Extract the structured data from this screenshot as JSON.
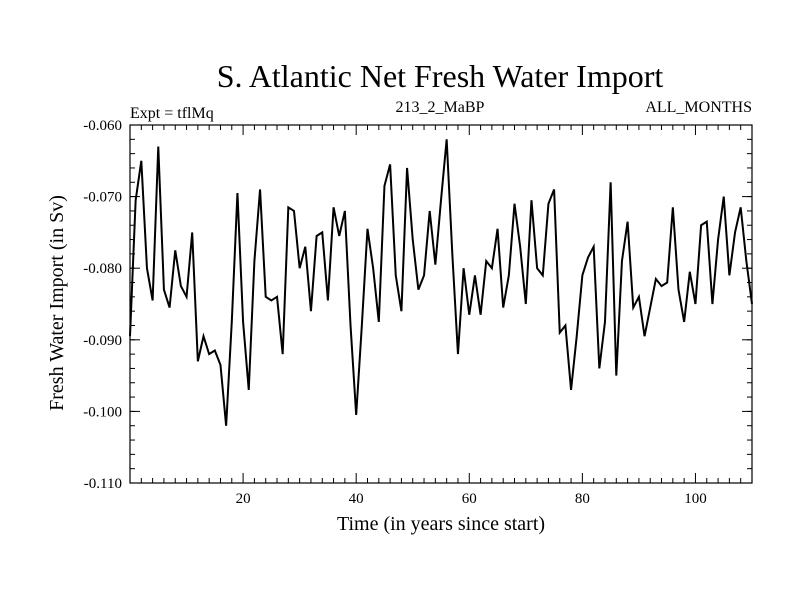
{
  "chart_data": {
    "type": "line",
    "title": "S. Atlantic Net Fresh Water Import",
    "subtitle_left": "Expt = tflMq",
    "subtitle_center": "213_2_MaBP",
    "subtitle_right": "ALL_MONTHS",
    "xlabel": "Time (in years since start)",
    "ylabel": "Fresh Water Import (in Sv)",
    "xlim": [
      0,
      110
    ],
    "ylim": [
      -0.11,
      -0.06
    ],
    "x_ticks": [
      20,
      40,
      60,
      80,
      100
    ],
    "x_tick_labels": [
      "20",
      "40",
      "60",
      "80",
      "100"
    ],
    "y_ticks": [
      -0.06,
      -0.07,
      -0.08,
      -0.09,
      -0.1,
      -0.11
    ],
    "y_tick_labels": [
      "-0.060",
      "-0.070",
      "-0.080",
      "-0.090",
      "-0.100",
      "-0.110"
    ],
    "series": [
      {
        "name": "Net Fresh Water Import",
        "color": "#000000",
        "x": [
          0,
          1,
          2,
          3,
          4,
          5,
          6,
          7,
          8,
          9,
          10,
          11,
          12,
          13,
          14,
          15,
          16,
          17,
          18,
          19,
          20,
          21,
          22,
          23,
          24,
          25,
          26,
          27,
          28,
          29,
          30,
          31,
          32,
          33,
          34,
          35,
          36,
          37,
          38,
          39,
          40,
          41,
          42,
          43,
          44,
          45,
          46,
          47,
          48,
          49,
          50,
          51,
          52,
          53,
          54,
          55,
          56,
          57,
          58,
          59,
          60,
          61,
          62,
          63,
          64,
          65,
          66,
          67,
          68,
          69,
          70,
          71,
          72,
          73,
          74,
          75,
          76,
          77,
          78,
          79,
          80,
          81,
          82,
          83,
          84,
          85,
          86,
          87,
          88,
          89,
          90,
          91,
          92,
          93,
          94,
          95,
          96,
          97,
          98,
          99,
          100,
          101,
          102,
          103,
          104,
          105,
          106,
          107,
          108,
          109,
          110
        ],
        "values": [
          -0.0895,
          -0.0705,
          -0.065,
          -0.08,
          -0.0845,
          -0.063,
          -0.083,
          -0.0855,
          -0.0775,
          -0.0825,
          -0.084,
          -0.075,
          -0.093,
          -0.0895,
          -0.092,
          -0.0915,
          -0.0935,
          -0.102,
          -0.0875,
          -0.0695,
          -0.0875,
          -0.097,
          -0.079,
          -0.069,
          -0.084,
          -0.0845,
          -0.084,
          -0.092,
          -0.0715,
          -0.072,
          -0.08,
          -0.077,
          -0.086,
          -0.0755,
          -0.075,
          -0.0845,
          -0.0715,
          -0.0755,
          -0.072,
          -0.088,
          -0.1005,
          -0.088,
          -0.0745,
          -0.08,
          -0.0875,
          -0.0685,
          -0.0655,
          -0.081,
          -0.086,
          -0.066,
          -0.076,
          -0.083,
          -0.081,
          -0.072,
          -0.0795,
          -0.0705,
          -0.062,
          -0.078,
          -0.092,
          -0.08,
          -0.0865,
          -0.081,
          -0.0865,
          -0.079,
          -0.08,
          -0.0745,
          -0.0855,
          -0.081,
          -0.071,
          -0.077,
          -0.085,
          -0.0705,
          -0.08,
          -0.081,
          -0.071,
          -0.069,
          -0.089,
          -0.088,
          -0.097,
          -0.0895,
          -0.081,
          -0.0785,
          -0.077,
          -0.094,
          -0.0875,
          -0.068,
          -0.095,
          -0.079,
          -0.0735,
          -0.0855,
          -0.084,
          -0.0895,
          -0.0855,
          -0.0815,
          -0.0825,
          -0.082,
          -0.0715,
          -0.083,
          -0.0875,
          -0.0805,
          -0.085,
          -0.074,
          -0.0735,
          -0.085,
          -0.076,
          -0.07,
          -0.081,
          -0.075,
          -0.0715,
          -0.079,
          -0.085
        ]
      }
    ]
  }
}
